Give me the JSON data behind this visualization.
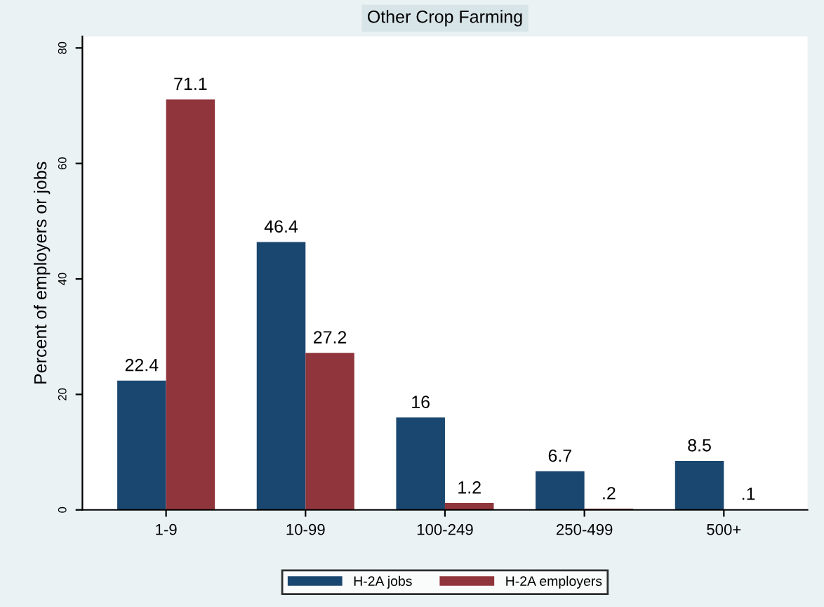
{
  "chart_data": {
    "type": "bar",
    "title": "Other Crop Farming",
    "ylabel": "Percent of employers or jobs",
    "categories": [
      "1-9",
      "10-99",
      "100-249",
      "250-499",
      "500+"
    ],
    "series": [
      {
        "name": "H-2A jobs",
        "color": "#1a476f",
        "values": [
          22.4,
          46.4,
          16,
          6.7,
          8.5
        ],
        "value_labels": [
          "22.4",
          "46.4",
          "16",
          "6.7",
          "8.5"
        ]
      },
      {
        "name": "H-2A employers",
        "color": "#90353b",
        "values": [
          71.1,
          27.2,
          1.2,
          0.2,
          0.1
        ],
        "value_labels": [
          "71.1",
          "27.2",
          "1.2",
          ".2",
          ".1"
        ]
      }
    ],
    "ylim": [
      0,
      82
    ],
    "yticks": [
      0,
      20,
      40,
      60,
      80
    ],
    "grid": false,
    "legend": "bottom"
  }
}
